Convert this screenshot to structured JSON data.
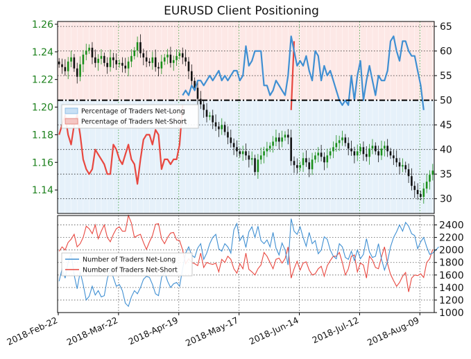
{
  "chart_data": [
    {
      "type": "line",
      "title": "EURUSD Client Positioning",
      "left_axis": {
        "ticks": [
          "1.26",
          "1.24",
          "1.22",
          "1.20",
          "1.18",
          "1.16",
          "1.14"
        ],
        "ylim": [
          1.123,
          1.262
        ]
      },
      "right_axis": {
        "ticks": [
          "65",
          "60",
          "55",
          "50",
          "45",
          "40",
          "35",
          "30"
        ],
        "ylim": [
          27,
          66
        ],
        "reference_line": 50
      },
      "legend": {
        "placement": "left",
        "entries": [
          "Percentage of Traders Net-Long",
          "Percentage of Traders Net-Short"
        ]
      },
      "colors": {
        "net_long": "#3f8fd2",
        "net_short": "#e8473f",
        "price_up": "#1a8f1a",
        "price_down": "#111111",
        "tick_green": "#1a7f1a"
      },
      "price_closes": [
        1.231,
        1.229,
        1.226,
        1.233,
        1.236,
        1.228,
        1.222,
        1.231,
        1.238,
        1.241,
        1.243,
        1.236,
        1.232,
        1.235,
        1.237,
        1.232,
        1.229,
        1.236,
        1.234,
        1.231,
        1.232,
        1.23,
        1.228,
        1.233,
        1.237,
        1.241,
        1.247,
        1.239,
        1.236,
        1.233,
        1.232,
        1.236,
        1.229,
        1.228,
        1.233,
        1.236,
        1.238,
        1.232,
        1.234,
        1.237,
        1.239,
        1.236,
        1.233,
        1.226,
        1.219,
        1.214,
        1.206,
        1.202,
        1.198,
        1.193,
        1.194,
        1.189,
        1.186,
        1.184,
        1.187,
        1.182,
        1.178,
        1.174,
        1.171,
        1.168,
        1.166,
        1.168,
        1.165,
        1.162,
        1.163,
        1.153,
        1.162,
        1.165,
        1.168,
        1.17,
        1.172,
        1.175,
        1.178,
        1.175,
        1.178,
        1.18,
        1.178,
        1.161,
        1.158,
        1.156,
        1.158,
        1.163,
        1.16,
        1.155,
        1.162,
        1.165,
        1.167,
        1.164,
        1.16,
        1.165,
        1.168,
        1.171,
        1.174,
        1.176,
        1.178,
        1.174,
        1.17,
        1.168,
        1.165,
        1.168,
        1.171,
        1.166,
        1.164,
        1.17,
        1.172,
        1.168,
        1.165,
        1.17,
        1.172,
        1.168,
        1.165,
        1.163,
        1.16,
        1.157,
        1.158,
        1.155,
        1.15,
        1.143,
        1.14,
        1.137,
        1.135,
        1.141,
        1.146,
        1.151,
        1.154
      ],
      "net_long_pct": [
        null,
        null,
        null,
        null,
        null,
        null,
        null,
        null,
        null,
        null,
        null,
        null,
        null,
        null,
        null,
        null,
        null,
        null,
        null,
        null,
        null,
        null,
        null,
        null,
        null,
        null,
        null,
        null,
        null,
        null,
        null,
        null,
        null,
        null,
        null,
        null,
        null,
        null,
        null,
        null,
        null,
        51,
        52,
        51,
        53,
        52,
        54,
        54,
        53,
        54,
        55,
        54,
        55,
        56,
        54,
        55,
        54,
        55,
        56,
        56,
        54,
        55,
        61,
        57,
        58,
        60,
        60,
        60,
        53,
        53,
        51,
        52,
        54,
        53,
        52,
        51,
        55,
        63,
        60,
        57,
        58,
        57,
        59,
        56,
        54,
        60,
        59,
        54,
        57,
        55,
        56,
        54,
        52,
        50,
        49,
        50,
        49,
        55,
        50,
        55,
        58,
        50,
        54,
        57,
        54,
        51,
        55,
        54,
        54,
        56,
        62,
        63,
        60,
        58,
        62,
        62,
        60,
        59,
        59,
        56,
        53,
        48
      ],
      "net_short_pct": [
        43,
        45,
        47,
        43,
        41,
        45,
        47,
        43,
        38,
        36,
        35,
        36,
        40,
        39,
        38,
        37,
        35,
        35,
        41,
        40,
        38,
        37,
        39,
        41,
        38,
        37,
        33,
        38,
        42,
        43,
        43,
        41,
        44,
        43,
        36,
        38,
        38,
        37,
        38,
        38,
        41,
        49,
        null,
        null,
        null,
        null,
        null,
        null,
        null,
        null,
        null,
        null,
        null,
        null,
        null,
        null,
        null,
        null,
        null,
        null,
        null,
        null,
        null,
        null,
        null,
        null,
        null,
        null,
        null,
        null,
        null,
        null,
        null,
        null,
        null,
        null,
        null,
        48,
        62,
        null,
        null,
        null,
        null,
        null,
        null,
        null,
        null,
        null,
        null,
        null,
        null,
        null,
        null,
        null,
        null,
        null,
        null,
        null,
        null,
        null,
        null,
        null,
        null,
        null,
        null,
        null,
        null,
        null,
        null,
        null,
        null,
        null,
        null,
        null,
        null,
        null,
        null,
        null,
        null,
        null,
        null,
        null,
        null,
        null
      ]
    },
    {
      "type": "line",
      "right_axis": {
        "ticks": [
          "2400",
          "2200",
          "2000",
          "1800",
          "1600",
          "1400",
          "1200",
          "1000"
        ],
        "ylim": [
          1000,
          2550
        ]
      },
      "x_ticks": [
        "2018-Feb-22",
        "2018-Mar-22",
        "2018-Apr-19",
        "2018-May-17",
        "2018-Jun-14",
        "2018-Jul-12",
        "2018-Aug-09"
      ],
      "legend": {
        "placement": "left",
        "entries": [
          "Number of Traders Net-Long",
          "Number of Traders Net-Short"
        ]
      },
      "net_long_count": [
        1500,
        1700,
        1550,
        1800,
        1950,
        1600,
        1380,
        1650,
        1450,
        1200,
        1260,
        1420,
        1280,
        1350,
        1250,
        1270,
        1540,
        1700,
        1560,
        1420,
        1450,
        1350,
        1150,
        1100,
        1250,
        1350,
        1300,
        1400,
        1530,
        1580,
        1560,
        1450,
        1300,
        1270,
        1560,
        1650,
        1500,
        1400,
        1460,
        1480,
        1420,
        1700,
        1950,
        2050,
        1920,
        1880,
        2030,
        2100,
        1850,
        1950,
        2100,
        2200,
        2250,
        2020,
        1980,
        2100,
        2050,
        1950,
        2320,
        2420,
        2150,
        2230,
        2040,
        2290,
        2370,
        2200,
        2380,
        2150,
        2100,
        2160,
        2050,
        2280,
        2030,
        1920,
        2110,
        2000,
        1760,
        2500,
        2300,
        2250,
        2370,
        2200,
        2060,
        2280,
        2100,
        2150,
        1940,
        2000,
        2210,
        2170,
        2000,
        1900,
        1860,
        2100,
        2050,
        1880,
        1850,
        1980,
        1830,
        2000,
        1860,
        1930,
        2180,
        1970,
        1880,
        1900,
        2100,
        1850,
        1680,
        1820,
        2050,
        2200,
        2290,
        2400,
        2300,
        2440,
        2380,
        2260,
        2230,
        2020,
        2130,
        2200,
        2050,
        1930,
        1950,
        2000,
        2050
      ],
      "net_short_count": [
        1980,
        2050,
        2000,
        2120,
        2170,
        2250,
        2050,
        2100,
        2200,
        2380,
        2340,
        2260,
        2400,
        2180,
        2300,
        2400,
        2200,
        2130,
        2250,
        2340,
        2370,
        2300,
        2300,
        2550,
        2430,
        2200,
        2230,
        2250,
        2120,
        2010,
        2130,
        2230,
        2410,
        2420,
        2180,
        2100,
        2200,
        2270,
        2280,
        2160,
        2150,
        2000,
        1780,
        1860,
        1800,
        1780,
        1750,
        1950,
        1720,
        1800,
        1780,
        1770,
        1790,
        1650,
        1850,
        1800,
        1900,
        1850,
        1700,
        1630,
        1780,
        1700,
        1950,
        1690,
        1650,
        1600,
        1700,
        1760,
        1960,
        1900,
        1800,
        1700,
        1850,
        1870,
        1790,
        1860,
        2050,
        1550,
        1700,
        1820,
        1680,
        1790,
        1810,
        1680,
        1600,
        1620,
        1700,
        1740,
        1580,
        1750,
        1830,
        1900,
        1900,
        1960,
        1800,
        1600,
        1700,
        1900,
        1920,
        1650,
        1790,
        1760,
        1550,
        1900,
        1840,
        1720,
        1700,
        1890,
        2050,
        1780,
        1610,
        1510,
        1420,
        1480,
        1580,
        1640,
        1330,
        1550,
        1600,
        1590,
        1620,
        1560,
        1800,
        1860,
        2010
      ]
    }
  ]
}
